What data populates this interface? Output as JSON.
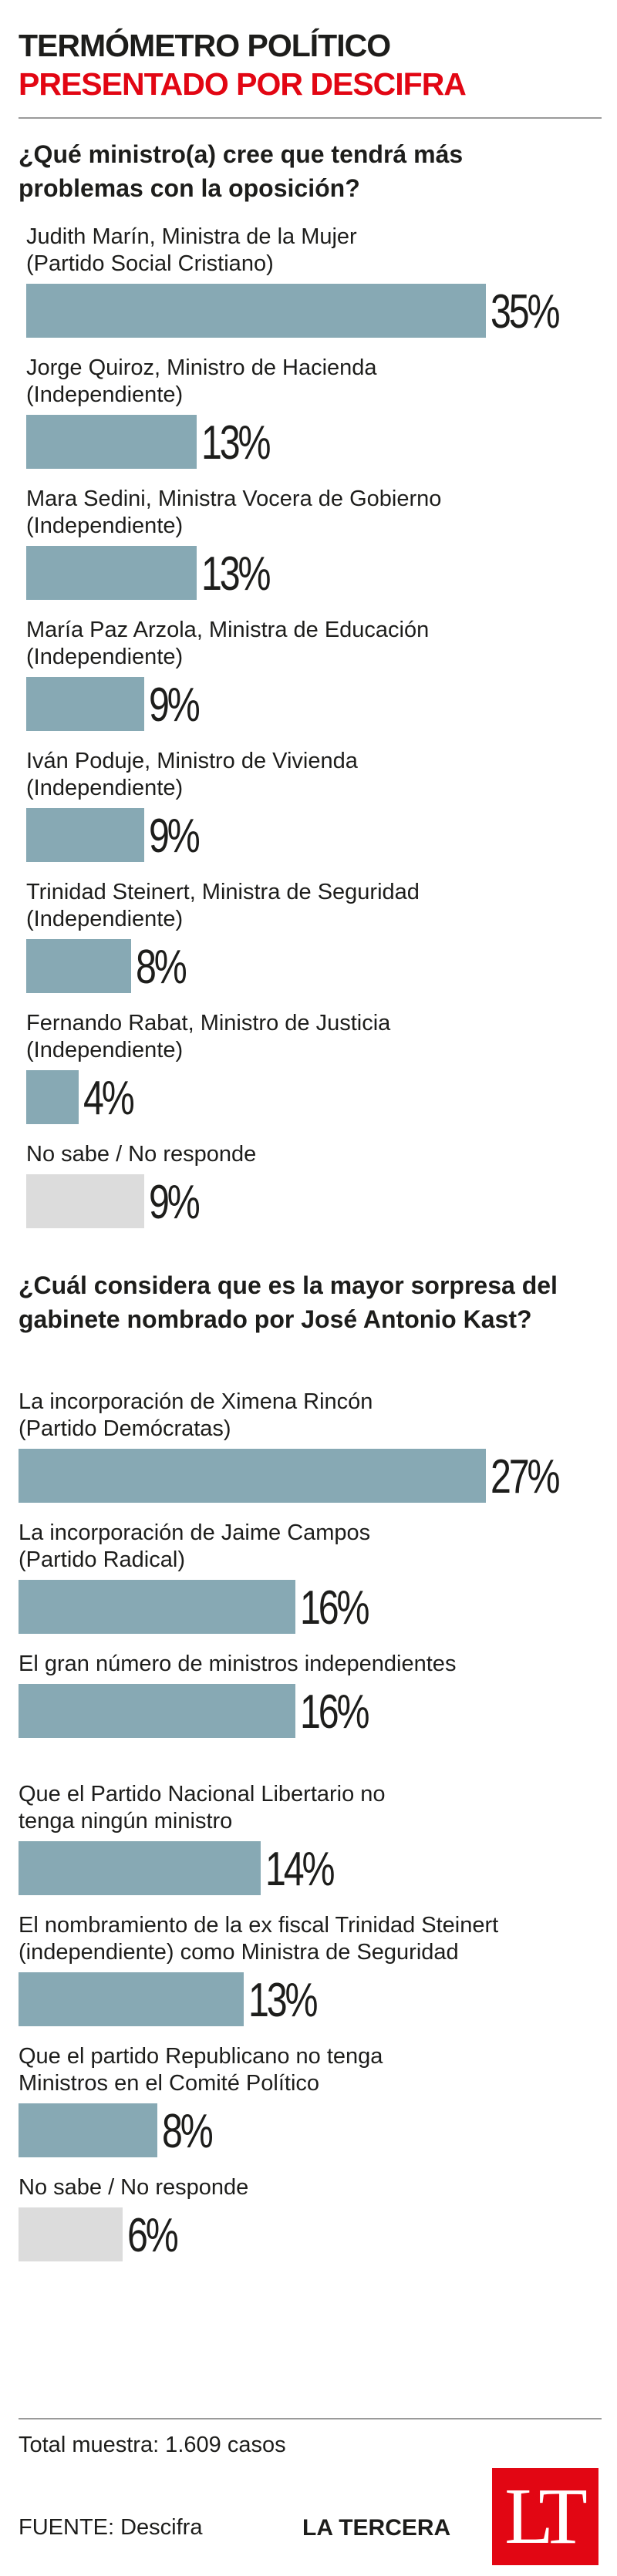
{
  "header": {
    "title": "TERMÓMETRO POLÍTICO",
    "subtitle": "PRESENTADO POR DESCIFRA"
  },
  "chart_data": [
    {
      "type": "bar",
      "orientation": "horizontal",
      "title": "¿Qué ministro(a) cree que tendrá más problemas con la oposición?",
      "unit": "%",
      "max": 35,
      "colors": {
        "bar": "#87a9b4",
        "no_answer": "#dcdcdc"
      },
      "categories": [
        "Judith Marín, Ministra de la Mujer (Partido Social Cristiano)",
        "Jorge Quiroz, Ministro de Hacienda (Independiente)",
        "Mara Sedini, Ministra Vocera de Gobierno (Independiente)",
        "María Paz Arzola, Ministra de Educación (Independiente)",
        "Iván Poduje, Ministro de Vivienda (Independiente)",
        "Trinidad Steinert, Ministra de Seguridad (Independiente)",
        "Fernando Rabat, Ministro de Justicia (Independiente)",
        "No sabe / No responde"
      ],
      "labels": [
        [
          "Judith Marín, Ministra de la Mujer",
          "(Partido Social Cristiano)"
        ],
        [
          "Jorge Quiroz, Ministro de Hacienda",
          "(Independiente)"
        ],
        [
          "Mara Sedini, Ministra Vocera de Gobierno",
          "(Independiente)"
        ],
        [
          "María Paz Arzola, Ministra de Educación",
          "(Independiente)"
        ],
        [
          "Iván Poduje, Ministro de Vivienda",
          "(Independiente)"
        ],
        [
          "Trinidad Steinert, Ministra de Seguridad",
          "(Independiente)"
        ],
        [
          "Fernando Rabat, Ministro de Justicia",
          "(Independiente)"
        ],
        [
          "No sabe / No responde"
        ]
      ],
      "values": [
        35,
        13,
        13,
        9,
        9,
        8,
        4,
        9
      ],
      "value_labels": [
        "35%",
        "13%",
        "13%",
        "9%",
        "9%",
        "8%",
        "4%",
        "9%"
      ]
    },
    {
      "type": "bar",
      "orientation": "horizontal",
      "title": "¿Cuál considera que es la mayor sorpresa del gabinete nombrado por José Antonio Kast?",
      "unit": "%",
      "max": 27,
      "colors": {
        "bar": "#87a9b4",
        "no_answer": "#dcdcdc"
      },
      "categories": [
        "La incorporación de Ximena Rincón (Partido Demócratas)",
        "La incorporación de Jaime Campos (Partido Radical)",
        "El gran número de ministros independientes",
        "Que el Partido Nacional Libertario no tenga ningún ministro",
        "El nombramiento de la ex fiscal Trinidad Steinert (independiente) como Ministra de Seguridad",
        "Que el partido Republicano no tenga Ministros en el Comité Político",
        "No sabe / No responde"
      ],
      "labels": [
        [
          "La incorporación de Ximena Rincón",
          "(Partido Demócratas)"
        ],
        [
          "La incorporación de Jaime Campos",
          "(Partido Radical)"
        ],
        [
          "El gran número de ministros independientes"
        ],
        [
          "Que el Partido Nacional Libertario no",
          "tenga ningún ministro"
        ],
        [
          "El nombramiento de la ex fiscal Trinidad Steinert",
          "(independiente) como Ministra de Seguridad"
        ],
        [
          "Que el partido Republicano no tenga",
          "Ministros en el Comité Político"
        ],
        [
          "No sabe / No responde"
        ]
      ],
      "values": [
        27,
        16,
        16,
        14,
        13,
        8,
        6
      ],
      "value_labels": [
        "27%",
        "16%",
        "16%",
        "14%",
        "13%",
        "8%",
        "6%"
      ]
    }
  ],
  "footer": {
    "sample": "Total muestra: 1.609 casos",
    "source": "FUENTE: Descifra",
    "brand": "LA TERCERA",
    "logo": "LT"
  }
}
